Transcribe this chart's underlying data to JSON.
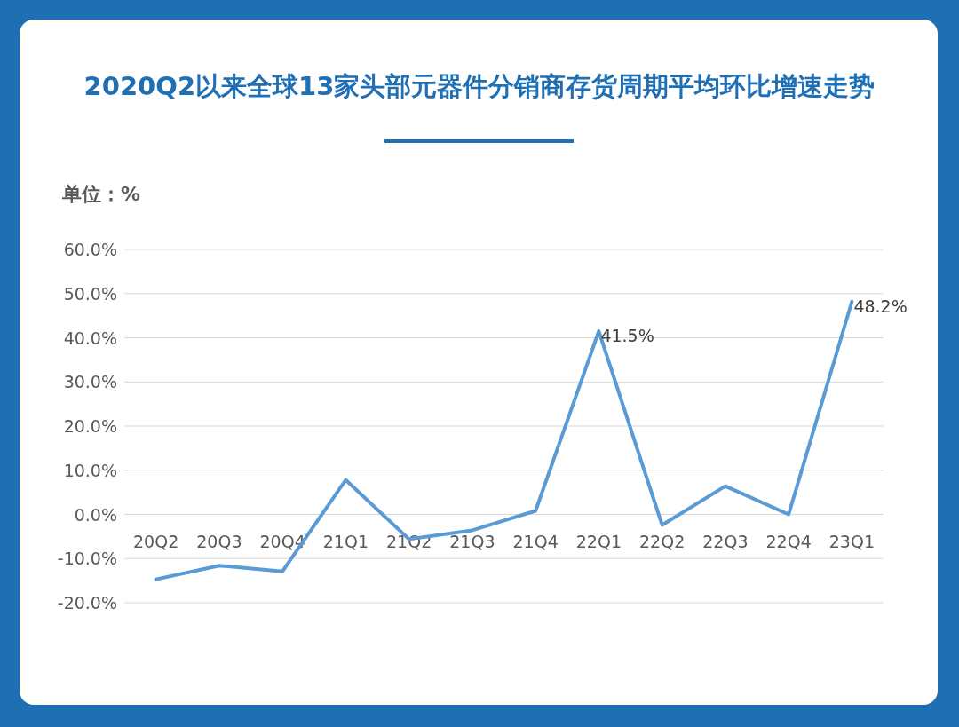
{
  "chart_data": {
    "type": "line",
    "title": "2020Q2以来全球13家头部元器件分销商存货周期平均环比增速走势",
    "ylabel": "单位：%",
    "categories": [
      "20Q2",
      "20Q3",
      "20Q4",
      "21Q1",
      "21Q2",
      "21Q3",
      "21Q4",
      "22Q1",
      "22Q2",
      "22Q3",
      "22Q4",
      "23Q1"
    ],
    "series": [
      {
        "color": "#5b9bd5",
        "values": [
          -14.7,
          -11.6,
          -12.9,
          7.8,
          -5.6,
          -3.6,
          0.8,
          41.5,
          -2.4,
          6.4,
          0.0,
          48.2
        ],
        "value_labels": [
          null,
          null,
          null,
          null,
          null,
          null,
          null,
          "41.5%",
          null,
          null,
          null,
          "48.2%"
        ]
      }
    ],
    "ylim": [
      -20,
      60
    ],
    "yticks": [
      {
        "value": -20,
        "label": "-20.0%"
      },
      {
        "value": -10,
        "label": "-10.0%"
      },
      {
        "value": 0,
        "label": "0.0%"
      },
      {
        "value": 10,
        "label": "10.0%"
      },
      {
        "value": 20,
        "label": "20.0%"
      },
      {
        "value": 30,
        "label": "30.0%"
      },
      {
        "value": 40,
        "label": "40.0%"
      },
      {
        "value": 50,
        "label": "50.0%"
      },
      {
        "value": 60,
        "label": "60.0%"
      }
    ],
    "grid": "y",
    "marker": "none",
    "line_style": "solid"
  }
}
